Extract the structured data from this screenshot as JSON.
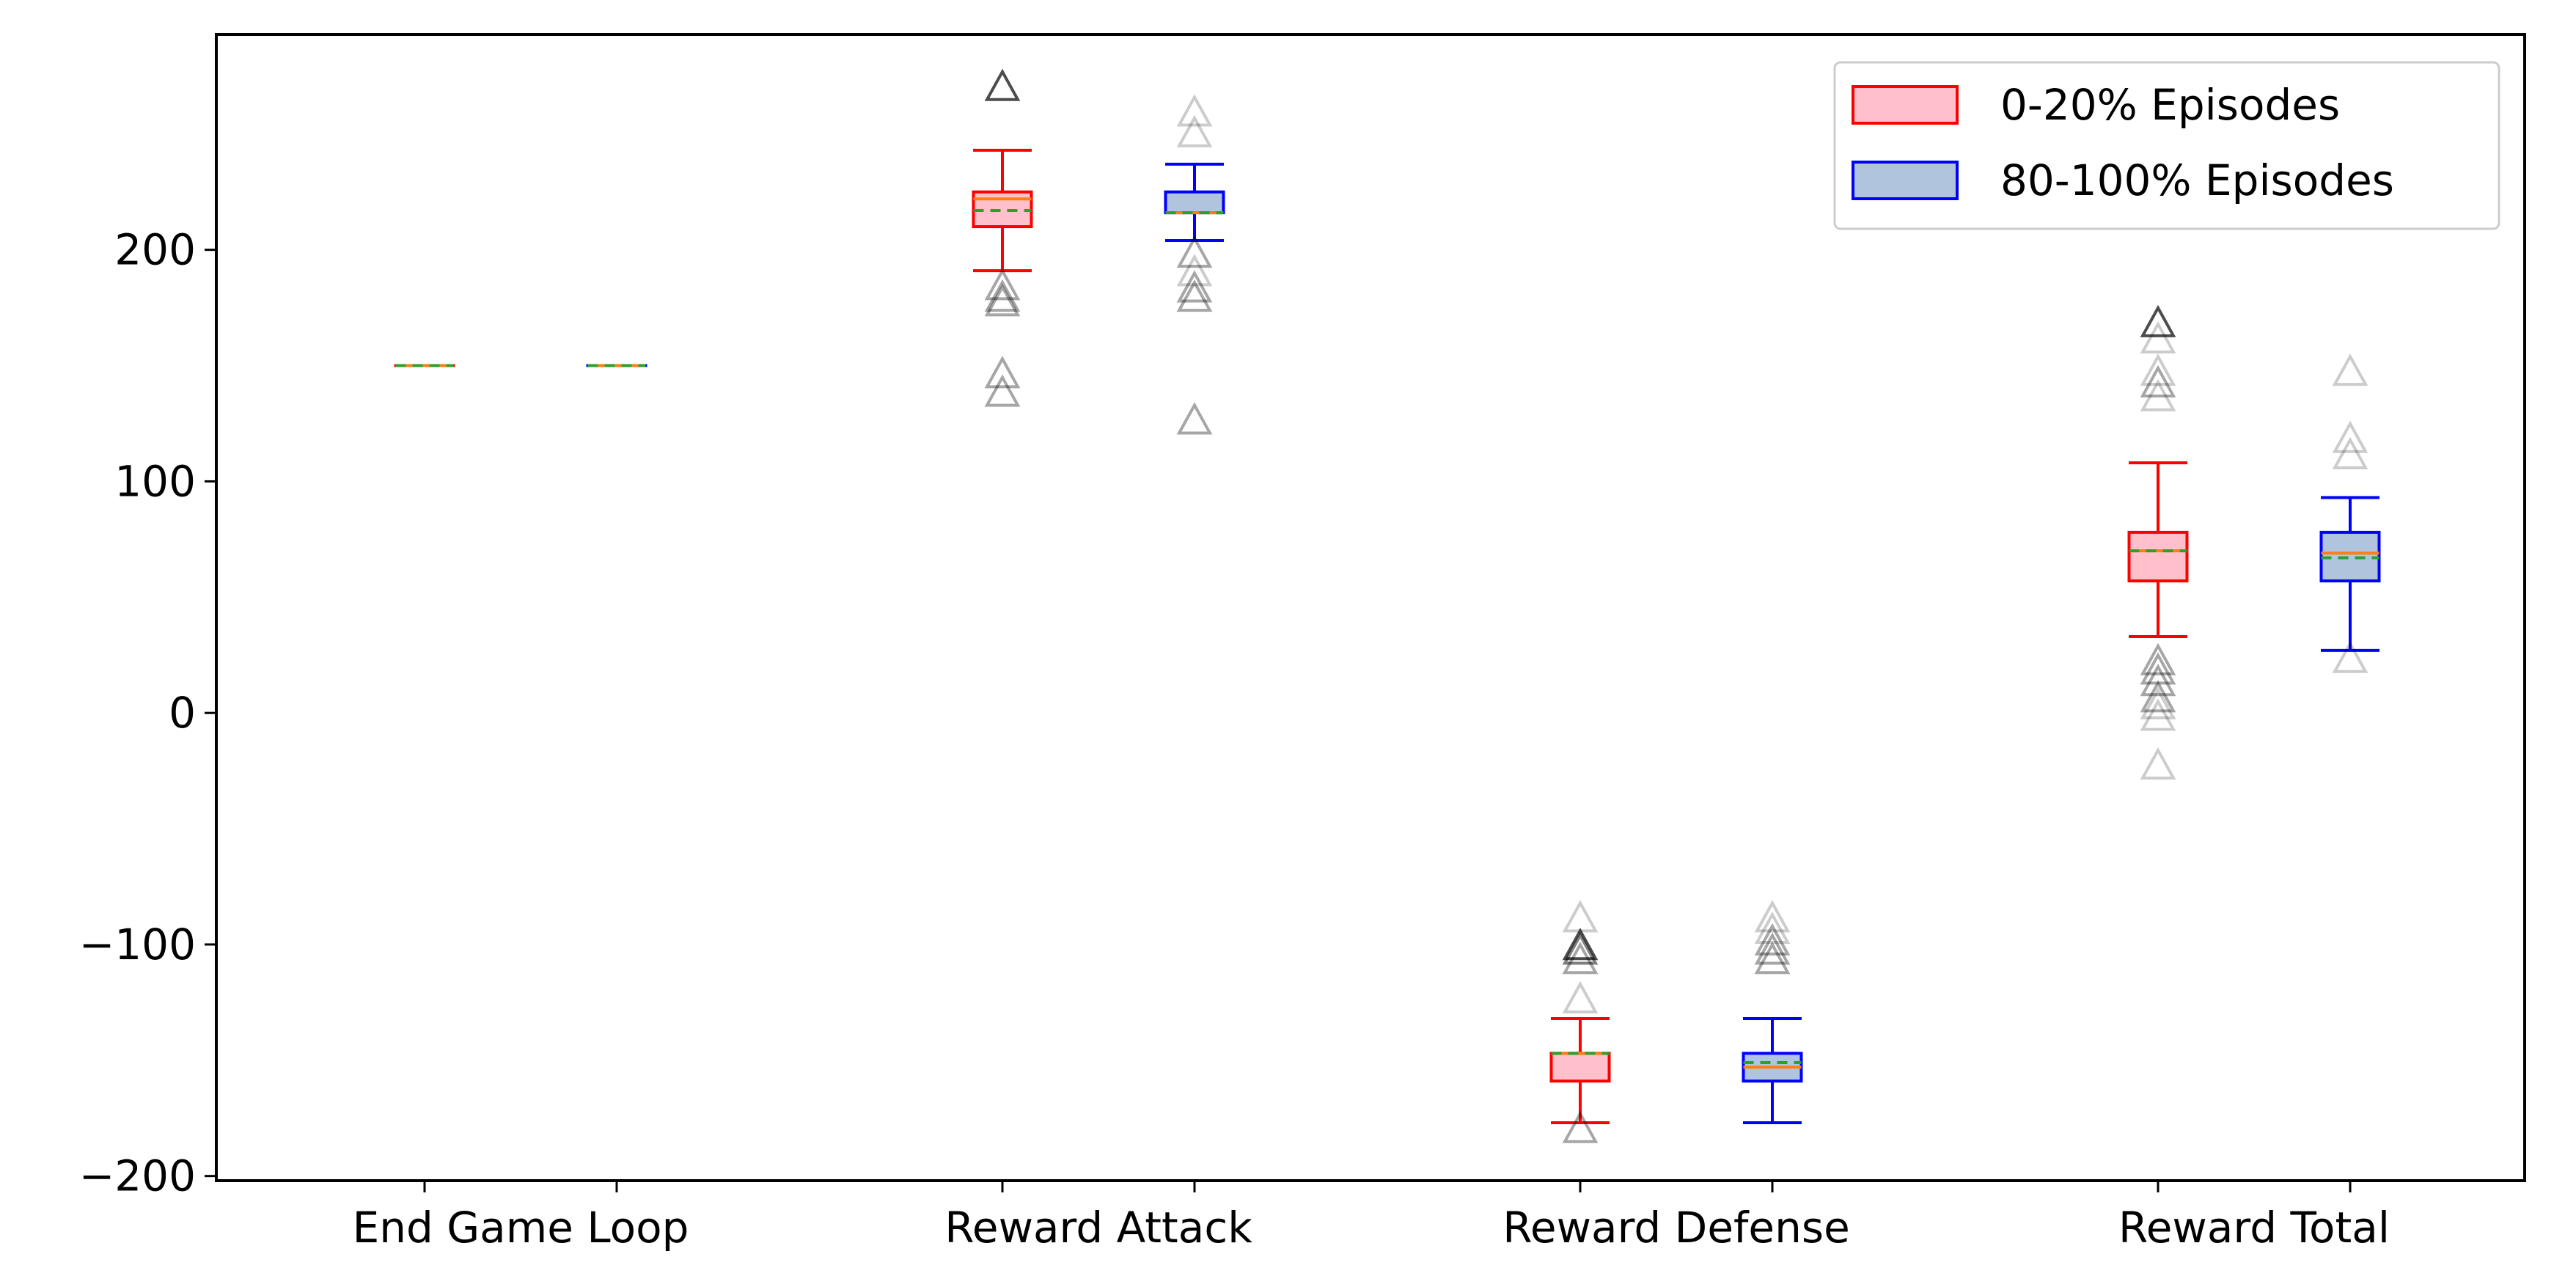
{
  "chart_data": {
    "type": "box",
    "title": "",
    "xlabel": "",
    "ylabel": "",
    "ylim": [
      -202,
      293
    ],
    "yticks": [
      -200,
      -100,
      0,
      100,
      200
    ],
    "ytick_labels": [
      "−200",
      "−100",
      "0",
      "100",
      "200"
    ],
    "categories": [
      "End Game Loop",
      "Reward Attack",
      "Reward Defense",
      "Reward Total"
    ],
    "legend_position": "top-right",
    "series": [
      {
        "name": "0-20% Episodes",
        "edge_color": "#ff0000",
        "fill_color": "#ffc0cb",
        "boxes": [
          {
            "category": "End Game Loop",
            "whisker_low": 150,
            "q1": 150,
            "median": 150,
            "q3": 150,
            "whisker_high": 150,
            "mean": 150,
            "outliers": []
          },
          {
            "category": "Reward Attack",
            "whisker_low": 191,
            "q1": 210,
            "median": 222,
            "q3": 225,
            "whisker_high": 243,
            "mean": 217,
            "outliers": [
              {
                "v": 269,
                "a": 0.7
              },
              {
                "v": 183,
                "a": 0.35
              },
              {
                "v": 178,
                "a": 0.35
              },
              {
                "v": 176,
                "a": 0.35
              },
              {
                "v": 145,
                "a": 0.35
              },
              {
                "v": 137,
                "a": 0.35
              }
            ]
          },
          {
            "category": "Reward Defense",
            "whisker_low": -177,
            "q1": -159,
            "median": -147,
            "q3": -147,
            "whisker_high": -132,
            "mean": -147,
            "outliers": [
              {
                "v": -90,
                "a": 0.2
              },
              {
                "v": -102,
                "a": 0.7
              },
              {
                "v": -104,
                "a": 0.5
              },
              {
                "v": -108,
                "a": 0.35
              },
              {
                "v": -125,
                "a": 0.2
              },
              {
                "v": -181,
                "a": 0.35
              }
            ]
          },
          {
            "category": "Reward Total",
            "whisker_low": 33,
            "q1": 57,
            "median": 70,
            "q3": 78,
            "whisker_high": 108,
            "mean": 70,
            "outliers": [
              {
                "v": 167,
                "a": 0.7
              },
              {
                "v": 160,
                "a": 0.2
              },
              {
                "v": 146,
                "a": 0.2
              },
              {
                "v": 141,
                "a": 0.35
              },
              {
                "v": 135,
                "a": 0.2
              },
              {
                "v": 21,
                "a": 0.35
              },
              {
                "v": 17,
                "a": 0.35
              },
              {
                "v": 12,
                "a": 0.35
              },
              {
                "v": 5,
                "a": 0.35
              },
              {
                "v": 2,
                "a": 0.2
              },
              {
                "v": -3,
                "a": 0.2
              },
              {
                "v": -24,
                "a": 0.2
              }
            ]
          }
        ]
      },
      {
        "name": "80-100% Episodes",
        "edge_color": "#0000ff",
        "fill_color": "#b0c4de",
        "boxes": [
          {
            "category": "End Game Loop",
            "whisker_low": 150,
            "q1": 150,
            "median": 150,
            "q3": 150,
            "whisker_high": 150,
            "mean": 150,
            "outliers": []
          },
          {
            "category": "Reward Attack",
            "whisker_low": 204,
            "q1": 216,
            "median": 216,
            "q3": 225,
            "whisker_high": 237,
            "mean": 216,
            "outliers": [
              {
                "v": 258,
                "a": 0.2
              },
              {
                "v": 249,
                "a": 0.2
              },
              {
                "v": 197,
                "a": 0.35
              },
              {
                "v": 189,
                "a": 0.2
              },
              {
                "v": 182,
                "a": 0.35
              },
              {
                "v": 178,
                "a": 0.35
              },
              {
                "v": 125,
                "a": 0.35
              }
            ]
          },
          {
            "category": "Reward Defense",
            "whisker_low": -177,
            "q1": -159,
            "median": -153,
            "q3": -147,
            "whisker_high": -132,
            "mean": -151,
            "outliers": [
              {
                "v": -90,
                "a": 0.2
              },
              {
                "v": -95,
                "a": 0.2
              },
              {
                "v": -100,
                "a": 0.35
              },
              {
                "v": -104,
                "a": 0.35
              },
              {
                "v": -108,
                "a": 0.35
              }
            ]
          },
          {
            "category": "Reward Total",
            "whisker_low": 27,
            "q1": 57,
            "median": 69,
            "q3": 78,
            "whisker_high": 93,
            "mean": 67,
            "outliers": [
              {
                "v": 146,
                "a": 0.2
              },
              {
                "v": 117,
                "a": 0.2
              },
              {
                "v": 110,
                "a": 0.2
              },
              {
                "v": 22,
                "a": 0.2
              }
            ]
          }
        ]
      }
    ],
    "median_color": "#ff7f0e",
    "mean_color": "#2ca02c",
    "outlier_color": "#000000",
    "outlier_marker": "triangle"
  }
}
